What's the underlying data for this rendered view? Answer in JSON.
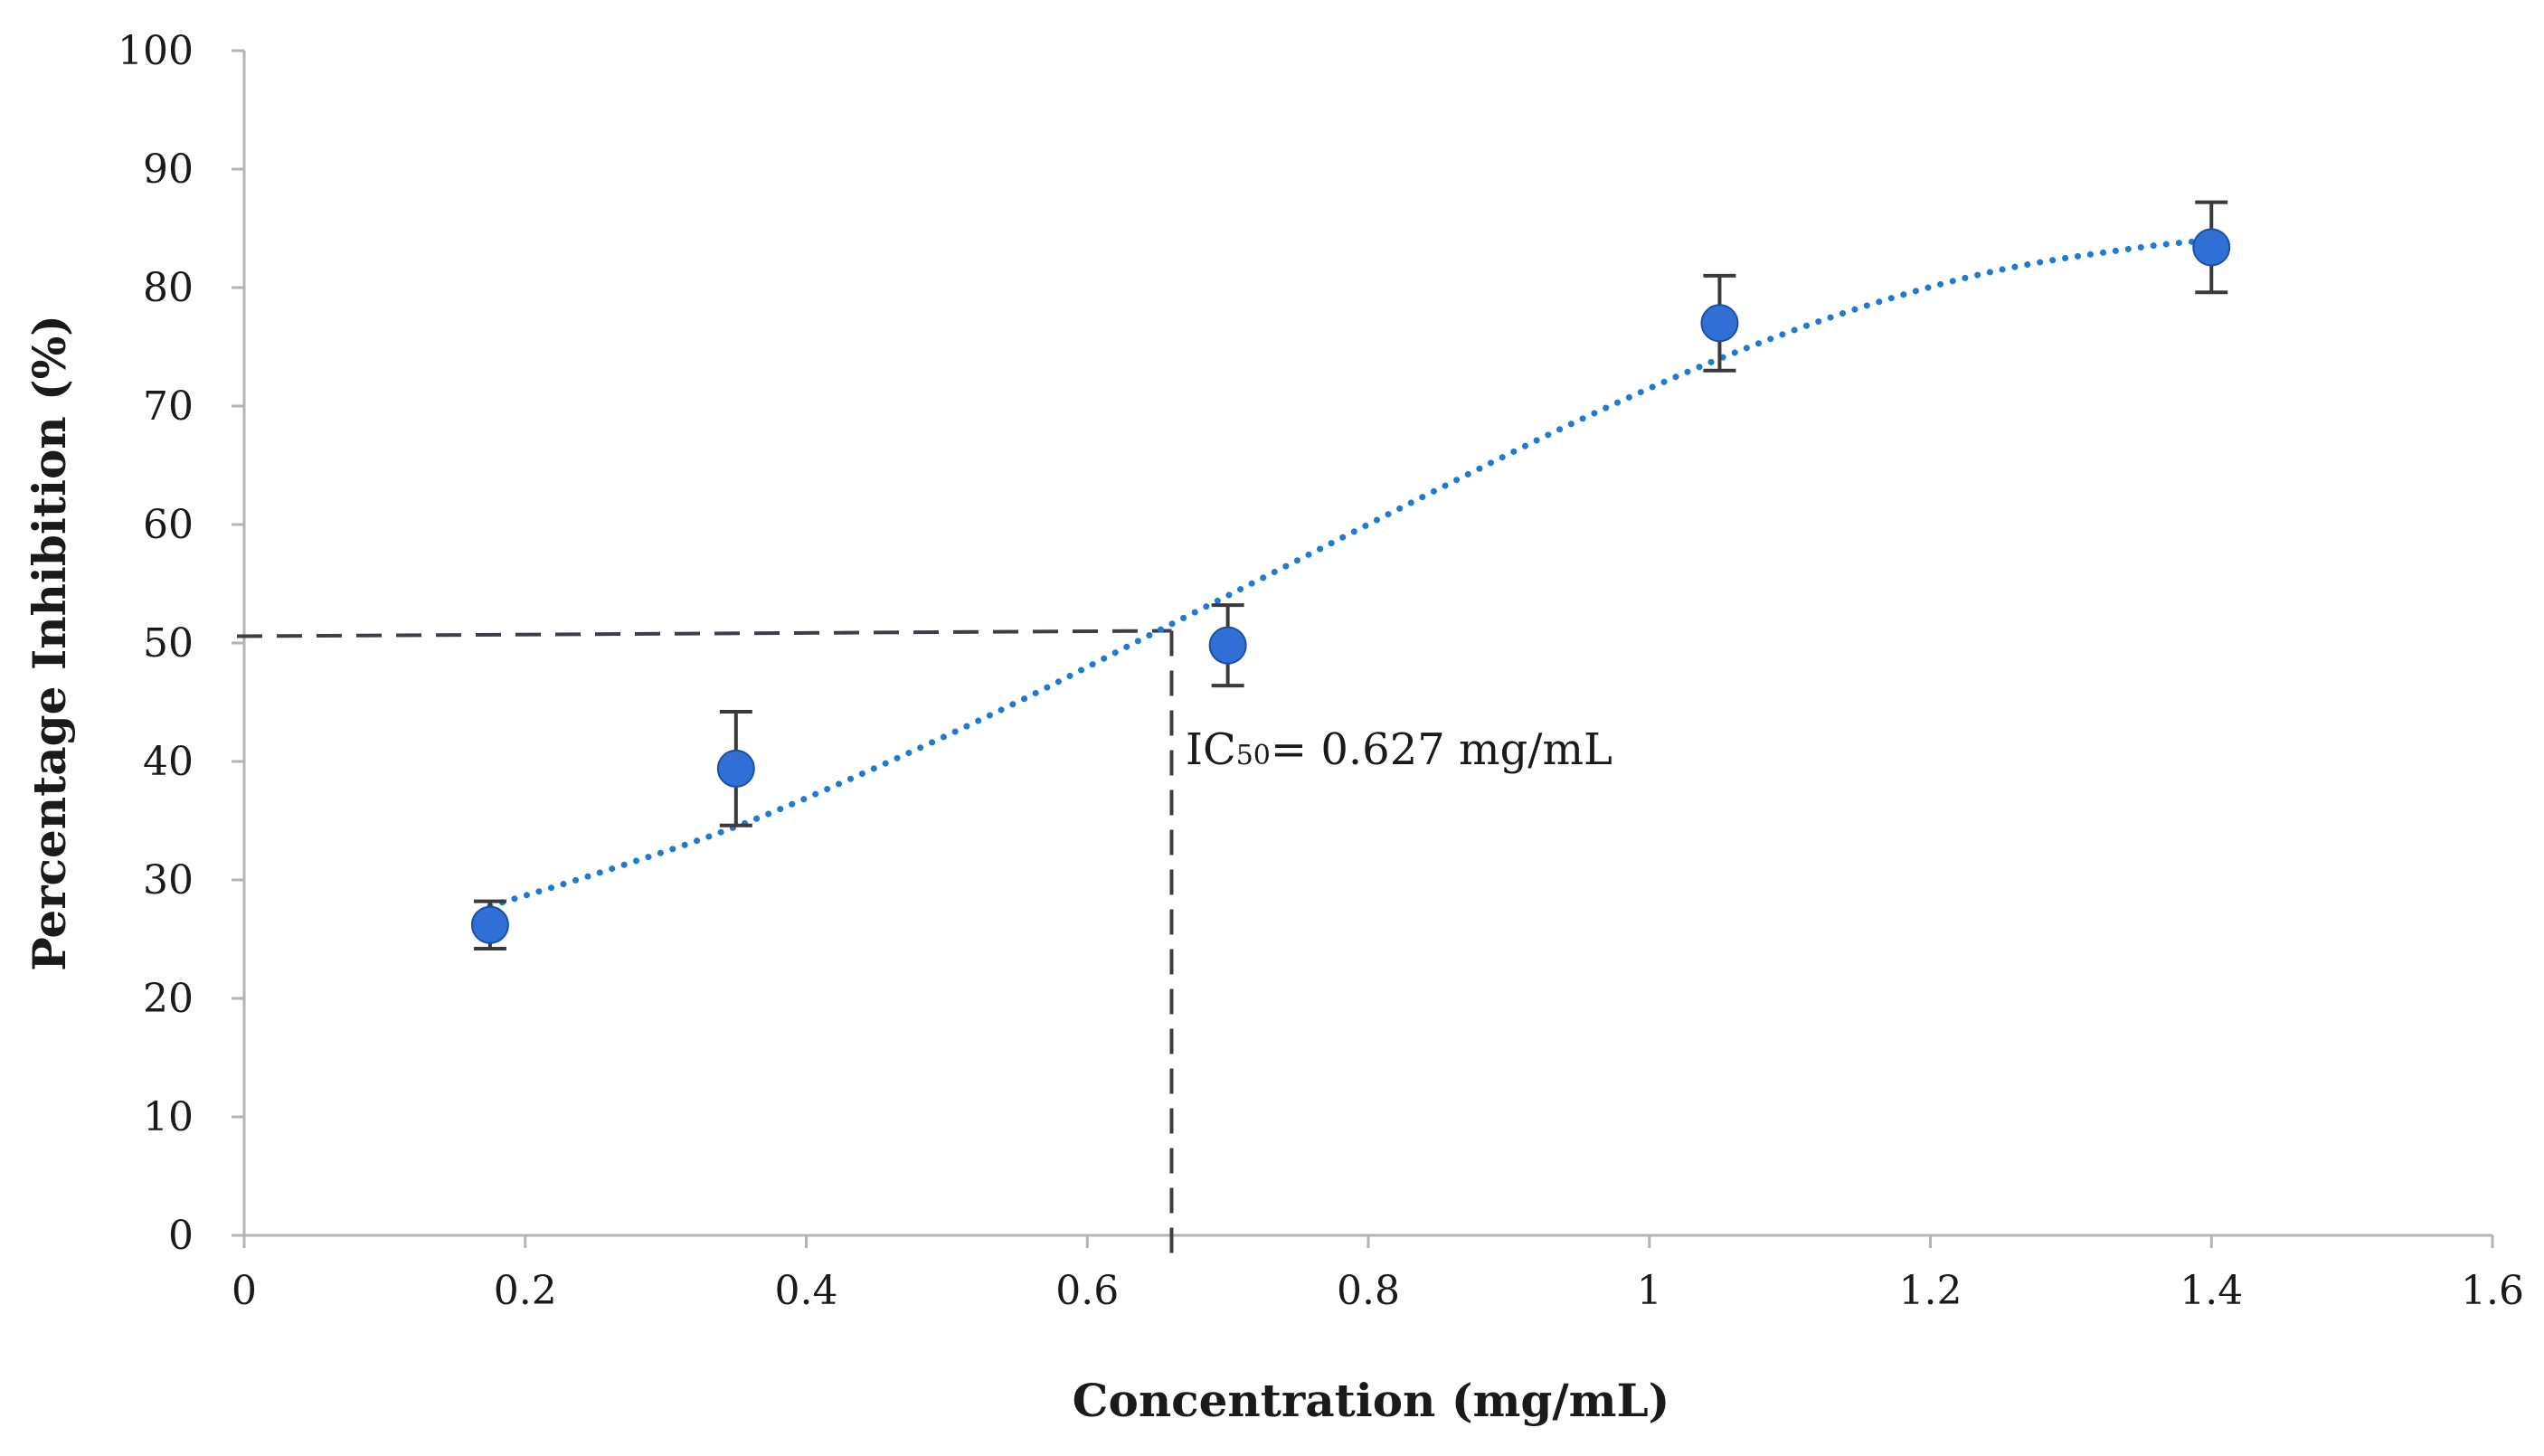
{
  "chart_data": {
    "type": "scatter",
    "title": "",
    "xlabel": "Concentration (mg/mL)",
    "ylabel": "Percentage Inhibition (%)",
    "xlim": [
      0,
      1.6
    ],
    "ylim": [
      0,
      100
    ],
    "xticks": [
      0,
      0.2,
      0.4,
      0.6,
      0.8,
      1,
      1.2,
      1.4,
      1.6
    ],
    "xtick_labels": [
      "0",
      "0.2",
      "0.4",
      "0.6",
      "0.8",
      "1",
      "1.2",
      "1.4",
      "1.6"
    ],
    "yticks": [
      0,
      10,
      20,
      30,
      40,
      50,
      60,
      70,
      80,
      90,
      100
    ],
    "ytick_labels": [
      "0",
      "10",
      "20",
      "30",
      "40",
      "50",
      "60",
      "70",
      "80",
      "90",
      "100"
    ],
    "grid": false,
    "series": [
      {
        "name": "Percentage Inhibition",
        "marker_color": "#2f6fd6",
        "x": [
          0.175,
          0.35,
          0.7,
          1.05,
          1.4
        ],
        "y": [
          26.2,
          39.4,
          49.8,
          77.0,
          83.4
        ],
        "error": [
          2.0,
          4.8,
          3.4,
          4.0,
          3.8
        ]
      }
    ],
    "trendline": {
      "style": "dotted",
      "color": "#1f7bd0",
      "x": [
        0.175,
        0.25,
        0.35,
        0.45,
        0.55,
        0.65,
        0.75,
        0.85,
        0.95,
        1.05,
        1.15,
        1.25,
        1.35,
        1.4
      ],
      "y": [
        27.8,
        30.5,
        34.5,
        39.5,
        45.0,
        51.0,
        57.0,
        63.0,
        68.8,
        74.0,
        78.3,
        81.5,
        83.4,
        84.0
      ]
    },
    "reference_lines": {
      "color": "#3a3f4a",
      "style": "dashed",
      "horizontal_y": 50.8,
      "vertical_x": 0.66
    },
    "annotations": [
      {
        "text_main": "IC",
        "text_sub": "50",
        "text_rest": "= 0.627 mg/mL",
        "x": 0.67,
        "y": 41
      }
    ]
  },
  "colors": {
    "axis": "#b3b3b3",
    "text": "#1a1a1a",
    "errorbar": "#3a3a3a",
    "marker": "#2f6fd6"
  }
}
